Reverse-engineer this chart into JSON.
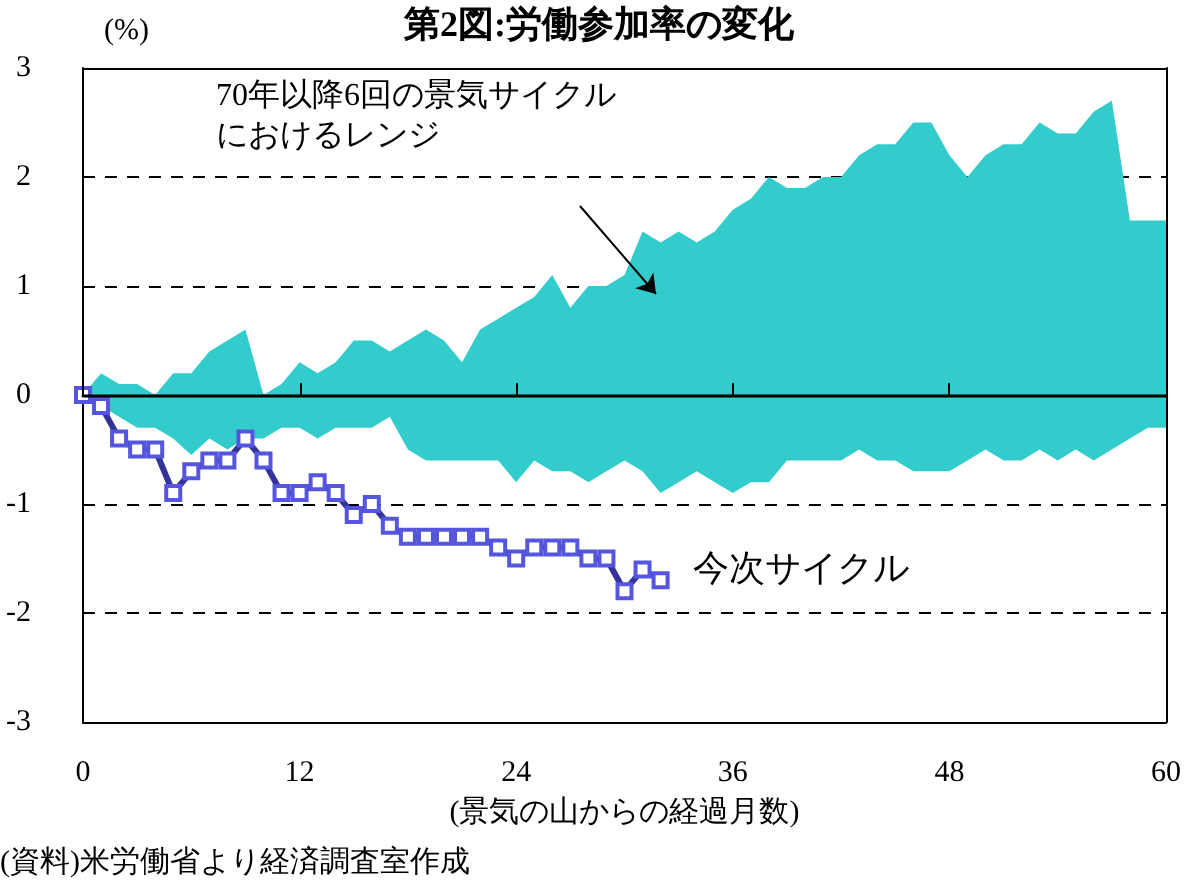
{
  "chart_data": {
    "type": "line",
    "title": "第2図:労働参加率の変化",
    "ylabel": "(%)",
    "xlabel": "(景気の山からの経過月数)",
    "annotations": [
      "70年以降6回の景気サイクルにおけるレンジ",
      "(資料)米労働省より経済調査室作成"
    ],
    "x": [
      0,
      1,
      2,
      3,
      4,
      5,
      6,
      7,
      8,
      9,
      10,
      11,
      12,
      13,
      14,
      15,
      16,
      17,
      18,
      19,
      20,
      21,
      22,
      23,
      24,
      25,
      26,
      27,
      28,
      29,
      30,
      31,
      32,
      33,
      34,
      35,
      36,
      37,
      38,
      39,
      40,
      41,
      42,
      43,
      44,
      45,
      46,
      47,
      48,
      49,
      50,
      51,
      52,
      53,
      54,
      55,
      56,
      57,
      58,
      59,
      60
    ],
    "series": [
      {
        "type": "area",
        "color": "#33cccc",
        "values": [
          0,
          0.2,
          0.1,
          0.1,
          0,
          0.2,
          0.2,
          0.4,
          0.5,
          0.6,
          0,
          0.1,
          0.3,
          0.2,
          0.3,
          0.5,
          0.5,
          0.4,
          0.5,
          0.6,
          0.5,
          0.3,
          0.6,
          0.7,
          0.8,
          0.9,
          1.1,
          0.8,
          1,
          1,
          1.1,
          1.5,
          1.4,
          1.5,
          1.4,
          1.5,
          1.7,
          1.8,
          2,
          1.9,
          1.9,
          2,
          2,
          2.2,
          2.3,
          2.3,
          2.5,
          2.5,
          2.2,
          2,
          2.2,
          2.3,
          2.3,
          2.5,
          2.4,
          2.4,
          2.6,
          2.7,
          1.6,
          1.6,
          1.6
        ]
      },
      {
        "type": "area",
        "color": "#33cccc",
        "values": [
          0,
          -0.1,
          -0.2,
          -0.3,
          -0.3,
          -0.4,
          -0.55,
          -0.4,
          -0.5,
          -0.4,
          -0.4,
          -0.3,
          -0.3,
          -0.4,
          -0.3,
          -0.3,
          -0.3,
          -0.2,
          -0.5,
          -0.6,
          -0.6,
          -0.6,
          -0.6,
          -0.6,
          -0.8,
          -0.6,
          -0.7,
          -0.7,
          -0.8,
          -0.7,
          -0.6,
          -0.7,
          -0.9,
          -0.8,
          -0.7,
          -0.8,
          -0.9,
          -0.8,
          -0.8,
          -0.6,
          -0.6,
          -0.6,
          -0.6,
          -0.5,
          -0.6,
          -0.6,
          -0.7,
          -0.7,
          -0.7,
          -0.6,
          -0.5,
          -0.6,
          -0.6,
          -0.5,
          -0.6,
          -0.5,
          -0.6,
          -0.5,
          -0.4,
          -0.3,
          -0.3
        ]
      },
      {
        "name": "今次サイクル",
        "color": "#333399",
        "marker": "square",
        "x": [
          0,
          1,
          2,
          3,
          4,
          5,
          6,
          7,
          8,
          9,
          10,
          11,
          12,
          13,
          14,
          15,
          16,
          17,
          18,
          19,
          20,
          21,
          22,
          23,
          24,
          25,
          26,
          27,
          28,
          29,
          30,
          31,
          32
        ],
        "values": [
          0,
          -0.1,
          -0.4,
          -0.5,
          -0.5,
          -0.9,
          -0.7,
          -0.6,
          -0.6,
          -0.4,
          -0.6,
          -0.9,
          -0.9,
          -0.8,
          -0.9,
          -1.1,
          -1,
          -1.2,
          -1.3,
          -1.3,
          -1.3,
          -1.3,
          -1.3,
          -1.4,
          -1.5,
          -1.4,
          -1.4,
          -1.4,
          -1.5,
          -1.5,
          -1.8,
          -1.6,
          -1.7
        ]
      }
    ],
    "xlim": [
      0,
      60
    ],
    "xticks": [
      0,
      12,
      24,
      36,
      48,
      60
    ],
    "ylim": [
      -3,
      3
    ],
    "yticks": [
      -3,
      -2,
      -1,
      0,
      1,
      2,
      3
    ],
    "grid": "y",
    "legend": false
  }
}
